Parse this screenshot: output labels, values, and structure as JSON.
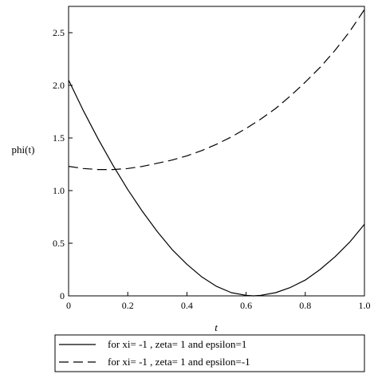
{
  "chart_data": {
    "type": "line",
    "title": "",
    "xlabel": "t",
    "ylabel": "phi(t)",
    "xlim": [
      0,
      1
    ],
    "ylim": [
      0,
      2.75
    ],
    "x_ticks": [
      0,
      0.2,
      0.4,
      0.6,
      0.8,
      1.0
    ],
    "x_tick_labels": [
      "0",
      "0.2",
      "0.4",
      "0.6",
      "0.8",
      "1.0"
    ],
    "y_ticks": [
      0,
      0.5,
      1.0,
      1.5,
      2.0,
      2.5
    ],
    "y_tick_labels": [
      "0",
      "0.5",
      "1.0",
      "1.5",
      "2.0",
      "2.5"
    ],
    "grid": false,
    "legend_position": "bottom",
    "series": [
      {
        "name": "for xi= -1 , zeta= 1 and epsilon=1",
        "style": "solid",
        "color": "#000000",
        "x": [
          0,
          0.05,
          0.1,
          0.15,
          0.2,
          0.25,
          0.3,
          0.35,
          0.4,
          0.45,
          0.5,
          0.55,
          0.6,
          0.625,
          0.65,
          0.7,
          0.75,
          0.8,
          0.85,
          0.9,
          0.95,
          1.0
        ],
        "y": [
          2.05,
          1.76,
          1.49,
          1.24,
          1.01,
          0.8,
          0.61,
          0.44,
          0.3,
          0.18,
          0.09,
          0.03,
          0.005,
          0.0,
          0.005,
          0.03,
          0.08,
          0.15,
          0.25,
          0.37,
          0.51,
          0.68
        ]
      },
      {
        "name": "for xi= -1 , zeta= 1 and epsilon=-1",
        "style": "dashed",
        "color": "#000000",
        "x": [
          0,
          0.05,
          0.1,
          0.15,
          0.2,
          0.25,
          0.3,
          0.35,
          0.4,
          0.45,
          0.5,
          0.55,
          0.6,
          0.65,
          0.7,
          0.75,
          0.8,
          0.85,
          0.9,
          0.95,
          1.0
        ],
        "y": [
          1.23,
          1.21,
          1.2,
          1.2,
          1.21,
          1.23,
          1.26,
          1.29,
          1.33,
          1.38,
          1.44,
          1.51,
          1.59,
          1.68,
          1.78,
          1.9,
          2.03,
          2.17,
          2.33,
          2.51,
          2.72
        ]
      }
    ]
  }
}
